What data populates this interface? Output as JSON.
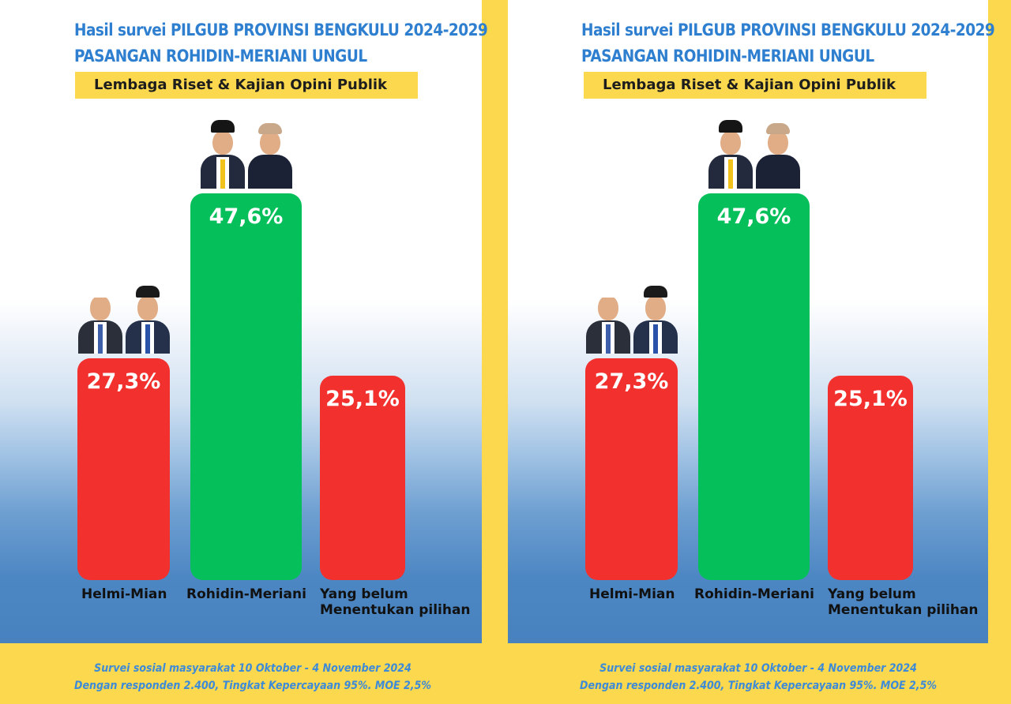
{
  "posters": [
    {
      "headline_line1": "Hasil survei PILGUB PROVINSI BENGKULU 2024-2029",
      "headline_line2": "PASANGAN ROHIDIN-MERIANI UNGUL",
      "source": "Lembaga Riset & Kajian Opini Publik",
      "footer_line1": "Survei sosial masyarakat 10 Oktober - 4 November 2024",
      "footer_line2": "Dengan responden 2.400, Tingkat Kepercayaan 95%. MOE 2,5%"
    },
    {
      "headline_line1": "Hasil survei PILGUB PROVINSI BENGKULU 2024-2029",
      "headline_line2": "PASANGAN ROHIDIN-MERIANI UNGUL",
      "source": "Lembaga Riset & Kajian Opini Publik",
      "footer_line1": "Survei sosial masyarakat 10 Oktober - 4 November 2024",
      "footer_line2": "Dengan responden 2.400, Tingkat Kepercayaan 95%. MOE 2,5%"
    }
  ],
  "colors": {
    "bar_red": "#f2312f",
    "bar_green": "#05c05a",
    "headline_blue": "#2f7fd0",
    "frame_yellow": "#fbd84e"
  },
  "chart_data": [
    {
      "type": "bar",
      "title": "Hasil survei PILGUB PROVINSI BENGKULU 2024-2029",
      "subtitle": "PASANGAN ROHIDIN-MERIANI UNGUL",
      "categories": [
        "Helmi-Mian",
        "Rohidin-Meriani",
        "Yang belum\nMenentukan pilihan"
      ],
      "values": [
        27.3,
        47.6,
        25.1
      ],
      "value_labels": [
        "27,3%",
        "47,6%",
        "25,1%"
      ],
      "bar_colors": [
        "#f2312f",
        "#05c05a",
        "#f2312f"
      ],
      "unit": "%",
      "grid": false,
      "legend": "none"
    },
    {
      "type": "bar",
      "title": "Hasil survei PILGUB PROVINSI BENGKULU 2024-2029",
      "subtitle": "PASANGAN ROHIDIN-MERIANI UNGUL",
      "categories": [
        "Helmi-Mian",
        "Rohidin-Meriani",
        "Yang belum\nMenentukan pilihan"
      ],
      "values": [
        27.3,
        47.6,
        25.1
      ],
      "value_labels": [
        "27,3%",
        "47,6%",
        "25,1%"
      ],
      "bar_colors": [
        "#f2312f",
        "#05c05a",
        "#f2312f"
      ],
      "unit": "%",
      "grid": false,
      "legend": "none"
    }
  ]
}
